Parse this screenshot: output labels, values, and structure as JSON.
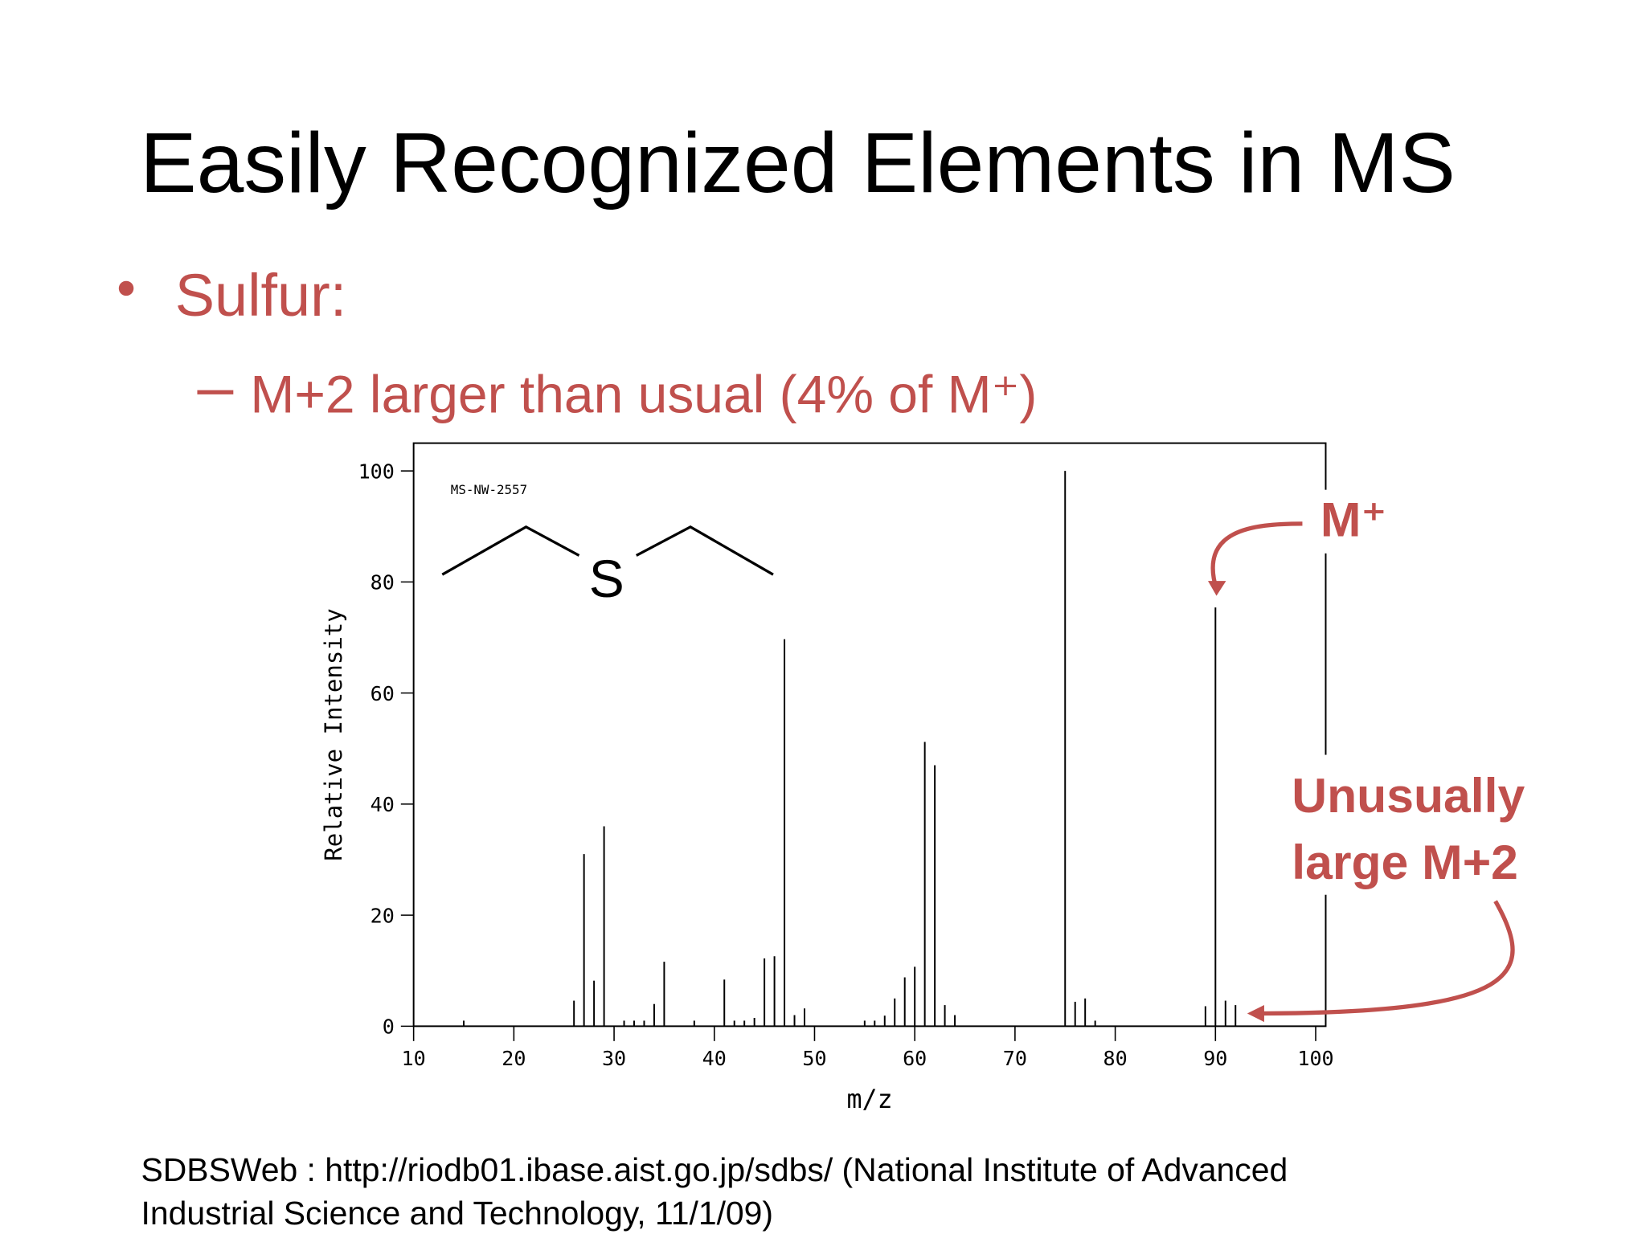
{
  "title": "Easily Recognized Elements in MS",
  "bullet": "Sulfur:",
  "sub_bullet": "M+2 larger than usual (4% of M⁺)",
  "citation": [
    "SDBSWeb : http://riodb01.ibase.aist.go.jp/sdbs/ (National Institute of Advanced",
    "Industrial Science and Technology, 11/1/09)"
  ],
  "chart_data": {
    "type": "stick",
    "code": "MS-NW-2557",
    "structure_atom": "S",
    "xlabel": "m/z",
    "ylabel": "Relative Intensity",
    "annotations": [
      "M⁺",
      "Unusually",
      "large  M+2"
    ],
    "color": "#000000",
    "x": [
      15,
      26,
      27,
      28,
      29,
      31,
      32,
      33,
      34,
      35,
      38,
      41,
      42,
      43,
      44,
      45,
      46,
      47,
      48,
      49,
      55,
      56,
      57,
      58,
      59,
      60,
      61,
      62,
      63,
      64,
      75,
      76,
      77,
      78,
      89,
      90,
      91,
      92
    ],
    "values": [
      1,
      4.6,
      31,
      8.2,
      36,
      1,
      1,
      1,
      4,
      11.6,
      1,
      8.4,
      1,
      1,
      1.5,
      12.2,
      12.6,
      69.7,
      2,
      3.2,
      1,
      1,
      1.9,
      5,
      8.8,
      10.7,
      51.2,
      47,
      3.8,
      2,
      100,
      4.4,
      5,
      1,
      3.6,
      75.4,
      4.6,
      3.8
    ],
    "xlim": [
      10,
      101
    ],
    "ylim": [
      0,
      105
    ],
    "xticks": [
      10,
      20,
      30,
      40,
      50,
      60,
      70,
      80,
      90,
      100
    ],
    "yticks": [
      0,
      20,
      40,
      60,
      80,
      100
    ]
  }
}
